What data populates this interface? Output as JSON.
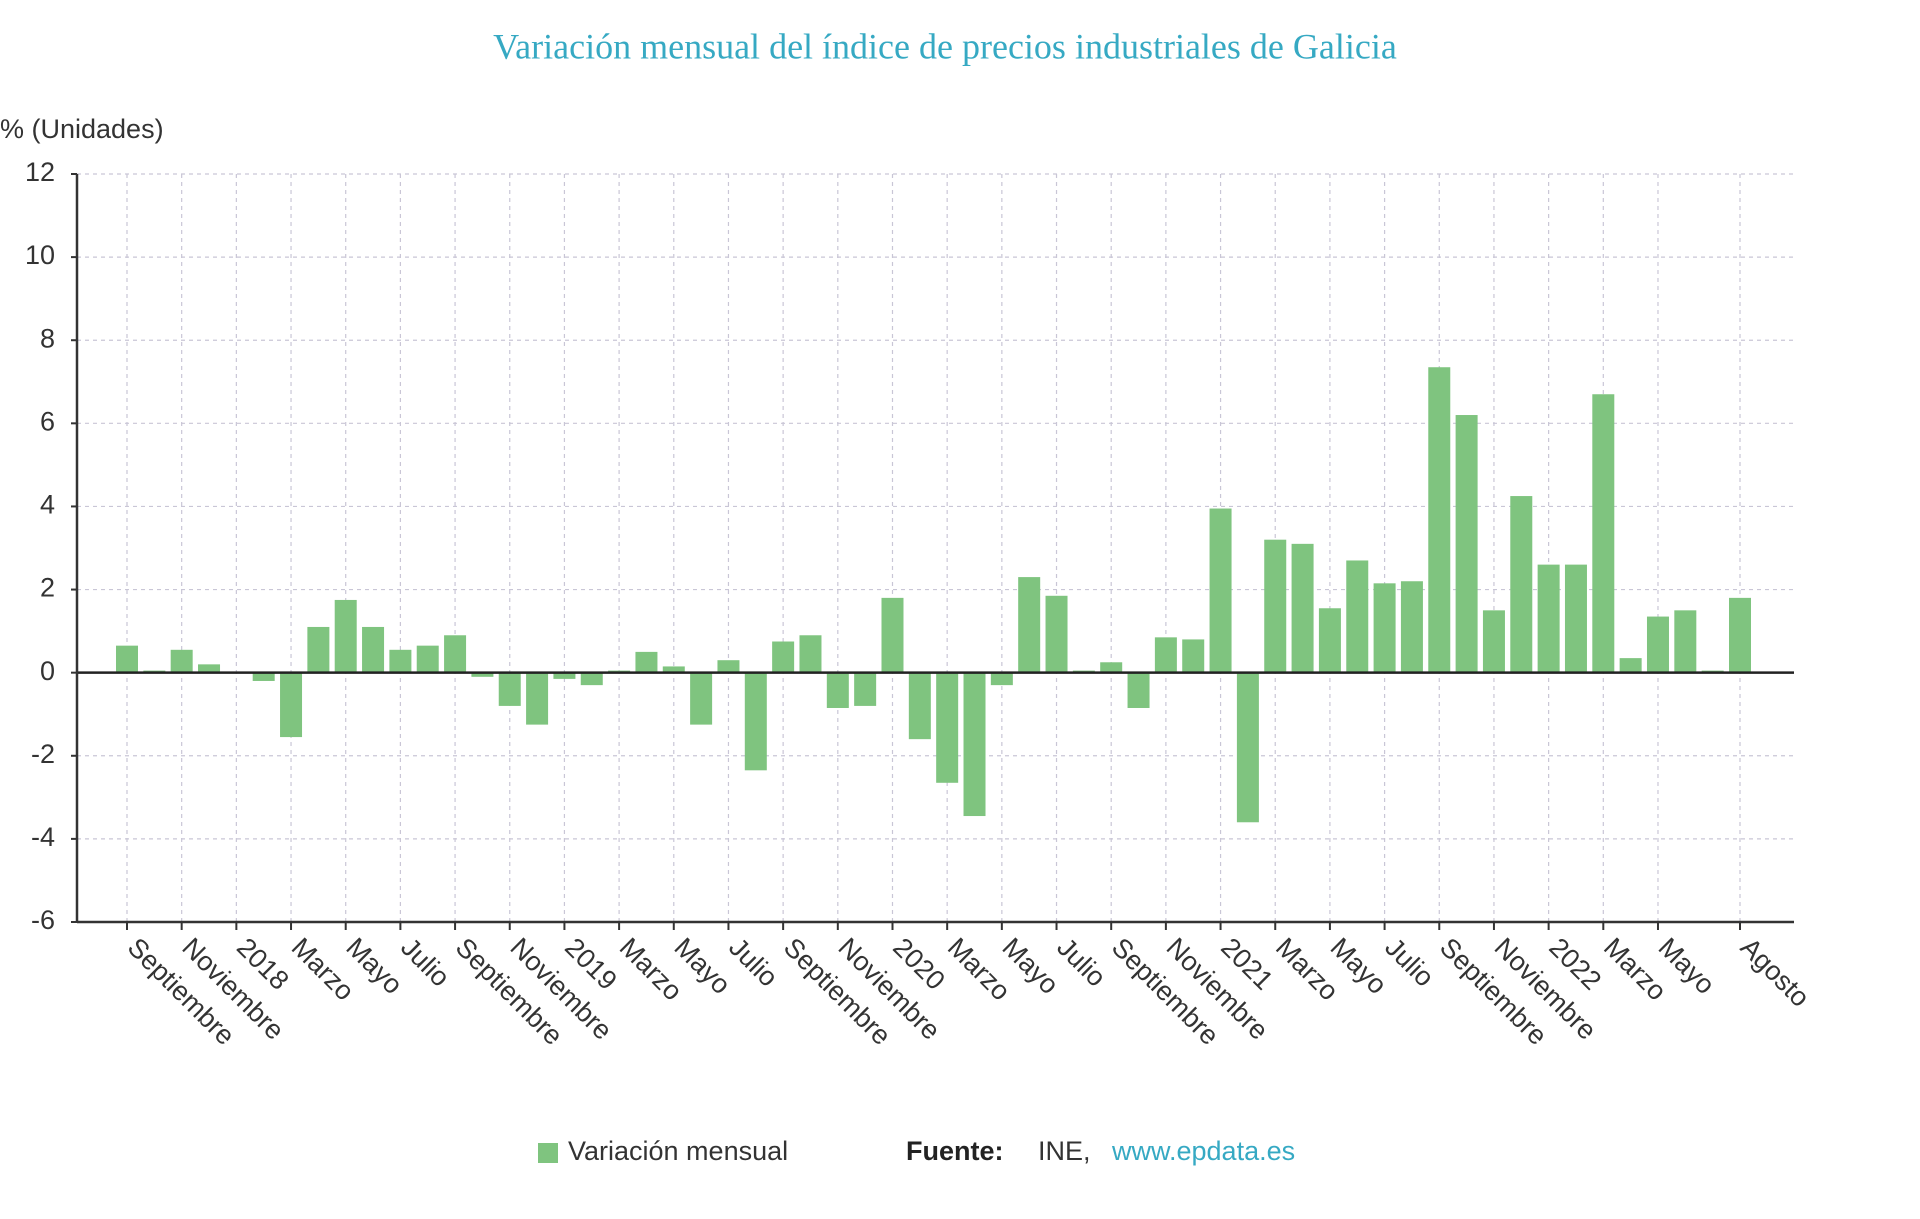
{
  "chart_data": {
    "type": "bar",
    "title": "Variación mensual del índice de precios industriales de Galicia",
    "y_label": "% (Unidades)",
    "categories": [
      "Septiembre",
      null,
      "Noviembre",
      null,
      "2018",
      null,
      "Marzo",
      null,
      "Mayo",
      null,
      "Julio",
      null,
      "Septiembre",
      null,
      "Noviembre",
      null,
      "2019",
      null,
      "Marzo",
      null,
      "Mayo",
      null,
      "Julio",
      null,
      "Septiembre",
      null,
      "Noviembre",
      null,
      "2020",
      null,
      "Marzo",
      null,
      "Mayo",
      null,
      "Julio",
      null,
      "Septiembre",
      null,
      "Noviembre",
      null,
      "2021",
      null,
      "Marzo",
      null,
      "Mayo",
      null,
      "Julio",
      null,
      "Septiembre",
      null,
      "Noviembre",
      null,
      "2022",
      null,
      "Marzo",
      null,
      "Mayo",
      null,
      null,
      "Agosto"
    ],
    "series": [
      {
        "name": "Variación mensual",
        "color": "#7fc47f",
        "values": [
          0.65,
          0.05,
          0.55,
          0.2,
          0,
          -0.2,
          -1.55,
          1.1,
          1.75,
          1.1,
          0.55,
          0.65,
          0.9,
          -0.1,
          -0.8,
          -1.25,
          -0.15,
          -0.3,
          0.05,
          0.5,
          0.15,
          -1.25,
          0.3,
          -2.35,
          0.75,
          0.9,
          -0.85,
          -0.8,
          1.8,
          -1.6,
          -2.65,
          -3.45,
          -0.3,
          2.3,
          1.85,
          0.05,
          0.25,
          -0.85,
          0.85,
          0.8,
          3.95,
          -3.6,
          3.2,
          3.1,
          1.55,
          2.7,
          2.15,
          2.2,
          7.35,
          6.2,
          1.5,
          4.25,
          2.6,
          2.6,
          6.7,
          0.35,
          1.35,
          1.5,
          0.05,
          1.8
        ]
      }
    ],
    "ylim": [
      -6,
      12
    ],
    "yticks": [
      -6,
      -4,
      -2,
      0,
      2,
      4,
      6,
      8,
      10,
      12
    ],
    "grid": true,
    "source": {
      "label": "Fuente:",
      "name": "INE,",
      "url": "www.epdata.es"
    }
  }
}
